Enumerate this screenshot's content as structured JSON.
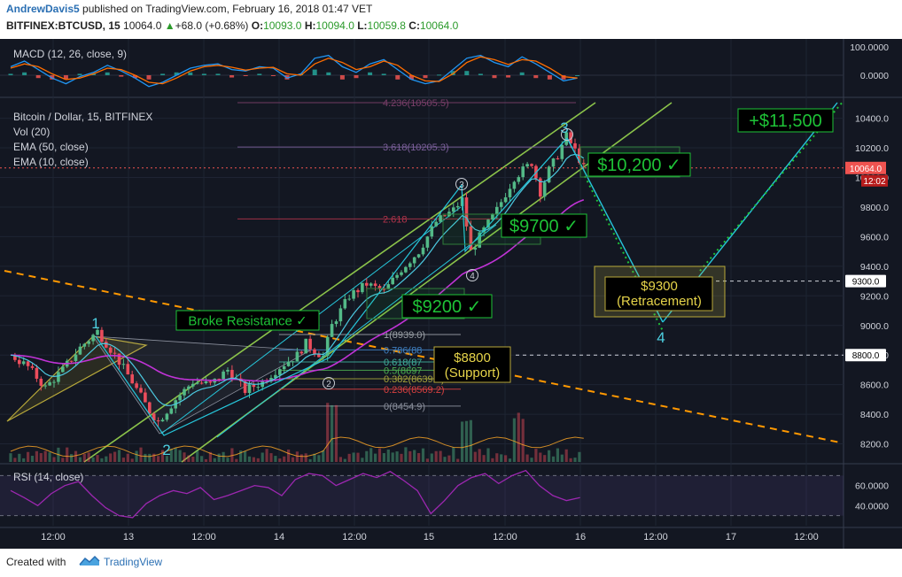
{
  "header": {
    "author": "AndrewDavis5",
    "published": "published on TradingView.com, February 16, 2018 01:47 VET",
    "symbol": "BITFINEX:BTCUSD, 15",
    "last": "10064.0",
    "change": "+68.0 (+0.68%)",
    "o_label": "O:",
    "o_value": "10093.0",
    "h_label": "H:",
    "h_value": "10094.0",
    "l_label": "L:",
    "l_value": "10059.8",
    "c_label": "C:",
    "c_value": "10064.0"
  },
  "footer": {
    "created": "Created with",
    "brand": "TradingView"
  },
  "colors": {
    "background": "#131722",
    "up_candle": "#53b987",
    "down_candle": "#eb4d5c",
    "ema50": "#c033d6",
    "ema10": "#4cc9e0",
    "channel": "#8bc34a",
    "fib_line": "#26c6da",
    "orange_trend": "#ff9800",
    "targets": "#1ec337",
    "rsi": "#9c27b0",
    "macd": "#2196f3",
    "signal": "#ff6d00"
  },
  "chart_data": [
    {
      "type": "line",
      "panel": "MACD",
      "title": "MACD (12, 26, close, 9)",
      "ticks": [
        "100.0000",
        "0.0000"
      ],
      "series": [
        {
          "name": "MACD",
          "values": [
            30,
            50,
            20,
            -10,
            -30,
            -5,
            10,
            35,
            15,
            -10,
            -40,
            -25,
            0,
            25,
            35,
            40,
            20,
            15,
            30,
            25,
            -10,
            5,
            60,
            70,
            30,
            10,
            40,
            55,
            20,
            -15,
            -30,
            -20,
            20,
            60,
            70,
            45,
            30,
            65,
            40,
            10,
            -20,
            -10
          ]
        },
        {
          "name": "Signal",
          "values": [
            25,
            40,
            30,
            5,
            -15,
            -10,
            5,
            25,
            20,
            0,
            -25,
            -30,
            -10,
            15,
            30,
            35,
            28,
            18,
            25,
            28,
            5,
            0,
            40,
            60,
            45,
            20,
            30,
            50,
            35,
            0,
            -20,
            -22,
            5,
            45,
            65,
            55,
            38,
            55,
            50,
            25,
            -5,
            -10
          ]
        }
      ]
    },
    {
      "type": "candlestick",
      "panel": "Price",
      "title": "Bitcoin / Dollar, 15, BITFINEX",
      "legend": [
        "Vol (20)",
        "EMA (50, close)",
        "EMA (10, close)"
      ],
      "x_ticks": [
        "12:00",
        "13",
        "12:00",
        "14",
        "12:00",
        "15",
        "12:00",
        "16",
        "12:00",
        "17",
        "12:00"
      ],
      "y_ticks": [
        "10400.0",
        "10200.0",
        "10000.0",
        "9800.0",
        "9600.0",
        "9400.0",
        "9200.0",
        "9000.0",
        "8800.0",
        "8600.0",
        "8400.0",
        "8200.0"
      ],
      "ylim": [
        8170,
        10520
      ],
      "price_badge": "10064.0",
      "countdown": "12:02",
      "price_path": [
        {
          "t": 0,
          "p": 8800
        },
        {
          "t": 2,
          "p": 8720
        },
        {
          "t": 4,
          "p": 8580
        },
        {
          "t": 6,
          "p": 8700
        },
        {
          "t": 8,
          "p": 8850
        },
        {
          "t": 10,
          "p": 8960
        },
        {
          "t": 12,
          "p": 8800
        },
        {
          "t": 14,
          "p": 8620
        },
        {
          "t": 16,
          "p": 8420
        },
        {
          "t": 17,
          "p": 8350
        },
        {
          "t": 19,
          "p": 8500
        },
        {
          "t": 21,
          "p": 8620
        },
        {
          "t": 23,
          "p": 8600
        },
        {
          "t": 25,
          "p": 8700
        },
        {
          "t": 27,
          "p": 8560
        },
        {
          "t": 29,
          "p": 8620
        },
        {
          "t": 31,
          "p": 8720
        },
        {
          "t": 33,
          "p": 8800
        },
        {
          "t": 34,
          "p": 8880
        },
        {
          "t": 35,
          "p": 8830
        },
        {
          "t": 36,
          "p": 8790
        },
        {
          "t": 37,
          "p": 9000
        },
        {
          "t": 39,
          "p": 9200
        },
        {
          "t": 41,
          "p": 9280
        },
        {
          "t": 43,
          "p": 9230
        },
        {
          "t": 45,
          "p": 9380
        },
        {
          "t": 47,
          "p": 9500
        },
        {
          "t": 49,
          "p": 9700
        },
        {
          "t": 51,
          "p": 9780
        },
        {
          "t": 52,
          "p": 9850
        },
        {
          "t": 53,
          "p": 9500
        },
        {
          "t": 54,
          "p": 9600
        },
        {
          "t": 56,
          "p": 9780
        },
        {
          "t": 58,
          "p": 10000
        },
        {
          "t": 60,
          "p": 10100
        },
        {
          "t": 61,
          "p": 9900
        },
        {
          "t": 62,
          "p": 10050
        },
        {
          "t": 63,
          "p": 10150
        },
        {
          "t": 64,
          "p": 10280
        },
        {
          "t": 65,
          "p": 10180
        },
        {
          "t": 66,
          "p": 10064
        }
      ],
      "fib_levels": [
        {
          "label": "4.236(10505.5)",
          "value": 10505.5
        },
        {
          "label": "3.618(10205.3)",
          "value": 10205.3
        },
        {
          "label": "2.618",
          "value": 9720
        },
        {
          "label": "1(8939.0)",
          "value": 8939.0
        },
        {
          "label": "0.786(88",
          "value": 8835
        },
        {
          "label": "0.618(87",
          "value": 8753
        },
        {
          "label": "0.5(8697",
          "value": 8697
        },
        {
          "label": "0.382(8639.9)",
          "value": 8639.9
        },
        {
          "label": "0.236(8569.2)",
          "value": 8569.2
        },
        {
          "label": "0(8454.9)",
          "value": 8454.9
        }
      ],
      "horizontal_levels": [
        {
          "badge": "9300.0",
          "value": 9300
        },
        {
          "badge": "8800.0",
          "value": 8800
        }
      ],
      "annotations": [
        {
          "text": "+$11,500",
          "style": "target"
        },
        {
          "text": "$10,200 ✓",
          "style": "target"
        },
        {
          "text": "$9700 ✓",
          "style": "target"
        },
        {
          "text": "$9200 ✓",
          "style": "target"
        },
        {
          "text": "Broke Resistance ✓",
          "style": "note"
        },
        {
          "text": "$8800",
          "style": "yellow"
        },
        {
          "text": "(Support)",
          "style": "yellow"
        },
        {
          "text": "$9300",
          "style": "yellow"
        },
        {
          "text": "(Retracement)",
          "style": "yellow"
        }
      ],
      "wave_labels": [
        "1",
        "2",
        "3",
        "4",
        "3",
        "4",
        "2"
      ]
    },
    {
      "type": "line",
      "panel": "RSI",
      "title": "RSI (14, close)",
      "y_ticks": [
        "60.0000",
        "40.0000"
      ],
      "ylim": [
        20,
        80
      ],
      "values": [
        55,
        48,
        40,
        52,
        60,
        64,
        50,
        38,
        30,
        28,
        42,
        50,
        55,
        52,
        58,
        46,
        50,
        55,
        60,
        58,
        50,
        66,
        72,
        70,
        60,
        66,
        72,
        68,
        74,
        65,
        55,
        32,
        45,
        60,
        68,
        72,
        62,
        70,
        75,
        60,
        50,
        45,
        48
      ]
    }
  ]
}
